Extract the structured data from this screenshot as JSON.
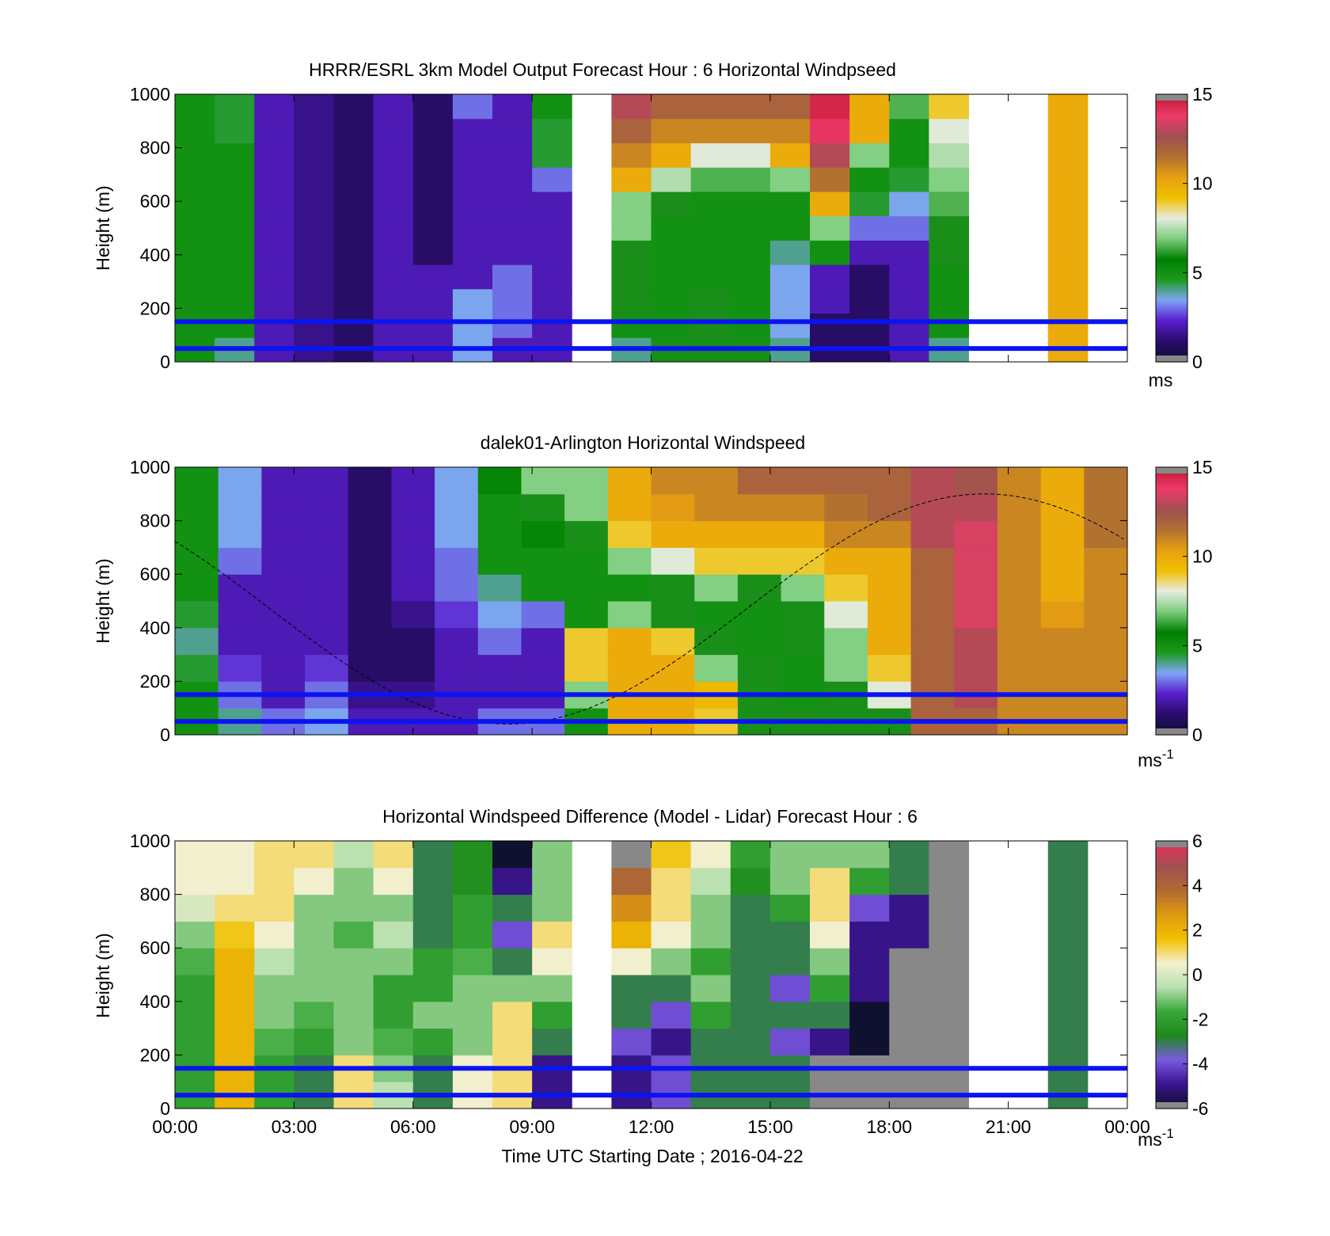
{
  "figure": {
    "xaxis_label": "Time UTC  Starting Date ; 2016-04-22",
    "xticks": [
      "00:00",
      "03:00",
      "06:00",
      "09:00",
      "12:00",
      "15:00",
      "18:00",
      "21:00",
      "00:00"
    ]
  },
  "colormaps": {
    "speed": [
      "#101030",
      "#2a0c6e",
      "#5a1fcf",
      "#7ea6f5",
      "#1b9a1b",
      "#008000",
      "#7ccd7c",
      "#e8ece0",
      "#f0c000",
      "#e8a010",
      "#b07030",
      "#a05050",
      "#ef3a6a",
      "#c01830"
    ],
    "diff": [
      "#101030",
      "#3a1490",
      "#7a5ae0",
      "#1b8a1b",
      "#3aa83a",
      "#b8e0b0",
      "#f5f0d0",
      "#f0c000",
      "#e09a10",
      "#b06a30",
      "#a05050",
      "#e8305a"
    ]
  },
  "chart_data": [
    {
      "type": "heatmap",
      "title": "HRRR/ESRL 3km Model Output   Forecast Hour : 6 Horizontal Windpseed",
      "ylabel": "Height (m)",
      "ylim": [
        0,
        1000
      ],
      "yticks": [
        "0",
        "200",
        "400",
        "600",
        "800",
        "1000"
      ],
      "xlim": [
        0,
        24
      ],
      "colorbar": {
        "ticks": [
          "0",
          "5",
          "10",
          "15"
        ],
        "range": [
          0,
          15
        ],
        "unit": "ms"
      },
      "reference_lines_m": [
        50,
        150
      ],
      "time_columns_hours": [
        0,
        1,
        2,
        3,
        4,
        5,
        6,
        7,
        8,
        9,
        11,
        12,
        13,
        14,
        15,
        16,
        17,
        18,
        19,
        22
      ],
      "speed_ms_rows_bottom_to_top": [
        [
          5.0,
          4.0,
          2.0,
          1.5,
          1.0,
          2.0,
          2.0,
          3.5,
          2.0,
          2.0,
          4.0,
          6.0,
          6.0,
          6.0,
          4.0,
          1.0,
          1.0,
          2.0,
          4.0,
          10.0
        ],
        [
          5.0,
          5.0,
          2.0,
          1.5,
          1.0,
          2.0,
          2.0,
          3.5,
          3.0,
          2.0,
          5.0,
          5.0,
          6.0,
          5.0,
          3.5,
          1.0,
          1.0,
          2.0,
          5.0,
          10.0
        ],
        [
          5.0,
          5.0,
          2.0,
          1.5,
          1.0,
          2.0,
          2.0,
          3.5,
          3.0,
          2.0,
          6.0,
          5.0,
          6.0,
          5.0,
          3.5,
          2.0,
          1.0,
          2.0,
          5.0,
          10.0
        ],
        [
          5.0,
          5.0,
          2.0,
          1.5,
          1.0,
          2.0,
          2.0,
          2.0,
          3.0,
          2.0,
          6.0,
          5.0,
          5.0,
          5.0,
          3.5,
          2.0,
          1.0,
          2.0,
          5.0,
          10.0
        ],
        [
          5.0,
          5.0,
          2.0,
          1.5,
          1.0,
          2.0,
          1.0,
          2.0,
          2.0,
          2.0,
          6.0,
          5.0,
          5.0,
          5.0,
          4.0,
          5.0,
          2.0,
          2.0,
          6.0,
          10.0
        ],
        [
          5.0,
          5.0,
          2.0,
          1.5,
          1.0,
          2.0,
          1.0,
          2.0,
          2.0,
          2.0,
          7.0,
          5.0,
          5.0,
          5.0,
          5.0,
          7.0,
          3.0,
          3.0,
          6.0,
          10.0
        ],
        [
          5.0,
          5.0,
          2.0,
          1.5,
          1.0,
          2.0,
          1.0,
          2.0,
          2.0,
          2.0,
          7.0,
          6.0,
          5.0,
          5.0,
          5.0,
          10.0,
          4.5,
          3.5,
          6.5,
          10.0
        ],
        [
          5.0,
          5.0,
          2.0,
          1.5,
          1.0,
          2.0,
          1.0,
          2.0,
          2.0,
          3.0,
          10.0,
          7.5,
          6.5,
          6.5,
          7.0,
          11.5,
          5.0,
          4.5,
          7.0,
          10.0
        ],
        [
          5.0,
          5.0,
          2.0,
          1.5,
          1.0,
          2.0,
          1.0,
          2.0,
          2.0,
          4.5,
          11.0,
          10.0,
          8.0,
          8.0,
          10.0,
          13.0,
          7.0,
          5.0,
          7.5,
          10.0
        ],
        [
          5.0,
          4.5,
          2.0,
          1.5,
          1.0,
          2.0,
          1.0,
          2.0,
          2.0,
          4.5,
          12.0,
          11.0,
          11.0,
          11.0,
          11.0,
          14.0,
          10.0,
          5.0,
          8.0,
          10.0
        ],
        [
          5.0,
          4.5,
          2.0,
          1.5,
          1.0,
          2.0,
          1.0,
          3.0,
          2.0,
          5.0,
          13.0,
          12.0,
          12.0,
          12.0,
          12.0,
          14.5,
          10.0,
          6.5,
          9.0,
          10.0
        ]
      ]
    },
    {
      "type": "heatmap",
      "title": "dalek01-Arlington  Horizontal Windspeed",
      "ylabel": "Height (m)",
      "ylim": [
        0,
        1000
      ],
      "yticks": [
        "0",
        "200",
        "400",
        "600",
        "800",
        "1000"
      ],
      "xlim": [
        0,
        24
      ],
      "colorbar": {
        "ticks": [
          "0",
          "5",
          "10",
          "15"
        ],
        "range": [
          0,
          15
        ],
        "unit": "ms",
        "unit_exponent": "-1"
      },
      "reference_lines_m": [
        50,
        150
      ],
      "speed_ms_rows_bottom_to_top": [
        [
          5.0,
          4.0,
          3.0,
          3.5,
          2.0,
          2.0,
          2.0,
          3.0,
          3.0,
          5.0,
          10.0,
          10.0,
          9.0,
          6.0,
          6.0,
          6.0,
          6.0,
          12.0,
          12.0,
          11.0,
          11.0,
          11.0
        ],
        [
          5.0,
          3.0,
          2.0,
          3.0,
          1.5,
          1.5,
          2.0,
          2.0,
          2.0,
          7.0,
          10.0,
          10.0,
          9.5,
          6.0,
          5.0,
          6.0,
          8.0,
          12.0,
          13.0,
          11.0,
          11.0,
          11.0
        ],
        [
          4.5,
          2.5,
          2.0,
          2.5,
          1.0,
          1.0,
          2.0,
          2.0,
          2.0,
          9.0,
          10.0,
          10.0,
          7.0,
          6.0,
          5.0,
          7.0,
          9.0,
          12.0,
          13.0,
          11.0,
          11.0,
          11.0
        ],
        [
          4.0,
          2.0,
          2.0,
          2.0,
          1.0,
          1.0,
          2.0,
          3.0,
          2.0,
          9.0,
          10.0,
          9.0,
          6.0,
          5.0,
          6.0,
          7.0,
          10.0,
          12.0,
          13.0,
          11.0,
          11.0,
          11.0
        ],
        [
          4.5,
          2.0,
          2.0,
          2.0,
          1.0,
          1.5,
          2.5,
          3.5,
          3.0,
          5.0,
          7.0,
          6.0,
          5.0,
          5.0,
          6.0,
          8.0,
          10.0,
          12.0,
          13.5,
          11.0,
          10.5,
          11.0
        ],
        [
          5.0,
          2.0,
          2.0,
          2.0,
          1.0,
          2.0,
          3.0,
          4.0,
          5.0,
          5.0,
          5.0,
          6.0,
          7.0,
          6.0,
          7.0,
          9.0,
          10.0,
          12.0,
          13.5,
          11.0,
          10.0,
          11.0
        ],
        [
          5.0,
          3.0,
          2.0,
          2.0,
          1.0,
          2.0,
          3.0,
          5.0,
          5.0,
          5.0,
          7.0,
          8.0,
          9.0,
          9.0,
          9.0,
          10.0,
          10.0,
          12.0,
          13.5,
          11.0,
          10.0,
          11.0
        ],
        [
          5.0,
          3.5,
          2.0,
          2.0,
          1.0,
          2.0,
          3.5,
          5.0,
          5.5,
          6.0,
          9.0,
          10.0,
          10.0,
          10.0,
          10.0,
          11.0,
          11.0,
          13.0,
          13.5,
          11.0,
          10.0,
          11.5
        ],
        [
          5.0,
          3.5,
          2.0,
          2.0,
          1.0,
          2.0,
          3.5,
          5.0,
          6.0,
          7.0,
          10.0,
          10.5,
          11.0,
          11.0,
          11.0,
          11.5,
          12.0,
          13.0,
          13.0,
          11.0,
          10.0,
          11.5
        ],
        [
          5.0,
          3.5,
          2.0,
          2.0,
          1.0,
          2.0,
          3.5,
          5.5,
          7.0,
          7.0,
          10.0,
          11.0,
          11.0,
          12.0,
          12.0,
          12.0,
          12.0,
          13.0,
          12.5,
          11.0,
          10.0,
          11.5
        ]
      ],
      "overlay_curve": "sinusoid"
    },
    {
      "type": "heatmap",
      "title": "Horizontal Windspeed Difference (Model - Lidar) Forecast Hour : 6",
      "ylabel": "Height (m)",
      "ylim": [
        0,
        1000
      ],
      "yticks": [
        "0",
        "200",
        "400",
        "600",
        "800",
        "1000"
      ],
      "xlim": [
        0,
        24
      ],
      "xlabel": "Time UTC  Starting Date ; 2016-04-22",
      "colorbar": {
        "ticks": [
          "-6",
          "-4",
          "-2",
          "0",
          "2",
          "4",
          "6"
        ],
        "range": [
          -6,
          6
        ],
        "unit": "ms",
        "unit_exponent": "-1"
      },
      "reference_lines_m": [
        50,
        150
      ],
      "time_columns_hours": [
        0,
        1,
        2,
        3,
        4,
        5,
        6,
        7,
        8,
        9,
        11,
        12,
        13,
        14,
        15,
        16,
        17,
        18,
        19,
        22
      ],
      "diff_ms_rows_bottom_to_top": [
        [
          -2.0,
          2.0,
          -2.0,
          -3.0,
          1.0,
          -0.5,
          -3.0,
          0.5,
          1.0,
          -5.0,
          -5.0,
          -4.0,
          -3.0,
          -3.0,
          -3.0,
          null,
          null,
          null,
          null,
          -3.0
        ],
        [
          -2.0,
          2.0,
          -2.0,
          -3.0,
          1.0,
          -1.0,
          -3.0,
          0.5,
          1.0,
          -5.0,
          -5.0,
          -4.0,
          -3.0,
          -3.0,
          -3.0,
          null,
          null,
          null,
          null,
          -3.0
        ],
        [
          -2.0,
          2.0,
          -1.5,
          -2.0,
          -1.0,
          -1.5,
          -2.0,
          -1.0,
          1.0,
          -3.0,
          -4.0,
          -5.0,
          -3.0,
          -3.0,
          -4.0,
          -5.0,
          -6.0,
          null,
          null,
          -3.0
        ],
        [
          -2.0,
          2.0,
          -1.0,
          -1.5,
          -1.0,
          -2.0,
          -1.0,
          -1.0,
          1.0,
          -2.0,
          -3.0,
          -4.0,
          -2.0,
          -3.0,
          -3.0,
          -3.0,
          -6.0,
          null,
          null,
          -3.0
        ],
        [
          -2.0,
          2.0,
          -1.0,
          -1.0,
          -1.0,
          -2.0,
          -2.0,
          -1.0,
          -1.0,
          -1.0,
          -3.0,
          -3.0,
          -1.0,
          -3.0,
          -4.0,
          -2.0,
          -5.0,
          null,
          null,
          -3.0
        ],
        [
          -1.5,
          2.0,
          -0.5,
          -1.0,
          -1.0,
          -1.0,
          -2.0,
          -1.5,
          -3.0,
          0.5,
          0.5,
          -1.0,
          -2.0,
          -3.0,
          -3.0,
          -1.0,
          -5.0,
          null,
          null,
          -3.0
        ],
        [
          -1.0,
          1.5,
          0.5,
          -1.0,
          -1.5,
          -0.5,
          -3.0,
          -2.0,
          -4.0,
          1.0,
          2.0,
          0.5,
          -1.0,
          -3.0,
          -3.0,
          0.5,
          -5.0,
          -5.0,
          null,
          -3.0
        ],
        [
          0.0,
          1.0,
          1.0,
          -1.0,
          -1.0,
          -1.0,
          -3.0,
          -2.0,
          -3.0,
          -1.0,
          3.0,
          1.0,
          -1.0,
          -3.0,
          -2.0,
          1.0,
          -4.0,
          -5.0,
          null,
          -3.0
        ],
        [
          0.5,
          0.5,
          1.0,
          0.5,
          -1.0,
          0.5,
          -3.0,
          -2.5,
          -5.0,
          -1.0,
          4.0,
          1.0,
          -0.5,
          -2.5,
          -1.0,
          1.0,
          -2.0,
          -3.0,
          null,
          -3.0
        ],
        [
          0.5,
          0.5,
          1.0,
          1.0,
          -0.5,
          1.0,
          -3.0,
          -2.5,
          -6.0,
          -1.0,
          null,
          1.5,
          0.5,
          -2.0,
          -1.0,
          -1.0,
          -1.0,
          -3.0,
          null,
          -3.0
        ]
      ],
      "masked_gray_cells": "missing-data"
    }
  ]
}
